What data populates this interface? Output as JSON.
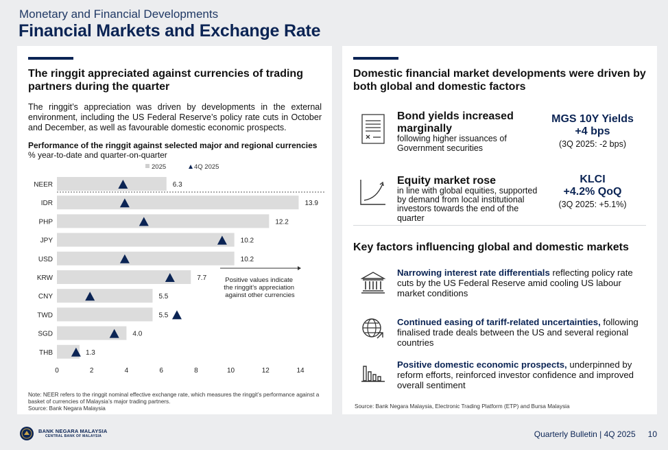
{
  "header": {
    "kicker": "Monetary and Financial Developments",
    "title": "Financial Markets and Exchange Rate"
  },
  "left": {
    "heading": "The ringgit appreciated against currencies of trading partners during the quarter",
    "intro": "The ringgit’s appreciation was driven by developments in the external environment, including the US Federal Reserve’s policy rate cuts in October and December, as well as favourable domestic economic prospects.",
    "note": "Note: NEER refers to the ringgit nominal effective exchange rate, which measures the ringgit’s performance against a basket of currencies of Malaysia’s major trading partners.",
    "source": "Source: Bank Negara Malaysia"
  },
  "chart_data": {
    "type": "bar",
    "orientation": "horizontal",
    "title": "Performance of the ringgit against selected major and regional currencies",
    "subtitle": "% year-to-date and quarter-on-quarter",
    "categories": [
      "NEER",
      "IDR",
      "PHP",
      "JPY",
      "USD",
      "KRW",
      "CNY",
      "TWD",
      "SGD",
      "THB"
    ],
    "series": [
      {
        "name": "2025",
        "kind": "bar",
        "values": [
          6.3,
          13.9,
          12.2,
          10.2,
          10.2,
          7.7,
          5.5,
          5.5,
          4.0,
          1.3
        ],
        "color": "#dcdcdc"
      },
      {
        "name": "4Q 2025",
        "kind": "marker",
        "values": [
          3.8,
          3.9,
          5.0,
          9.5,
          3.9,
          6.5,
          1.9,
          6.9,
          3.3,
          1.1
        ],
        "color": "#0b2454"
      }
    ],
    "data_labels": [
      "6.3",
      "13.9",
      "12.2",
      "10.2",
      "10.2",
      "7.7",
      "5.5",
      "5.5",
      "4.0",
      "1.3"
    ],
    "xlim": [
      0,
      14
    ],
    "xticks": [
      "0",
      "2",
      "4",
      "6",
      "8",
      "10",
      "12",
      "14"
    ],
    "annotation": [
      "Positive values indicate",
      "the ringgit’s appreciation",
      "against other currencies"
    ],
    "legend_position": "top-center"
  },
  "right": {
    "heading": "Domestic financial market developments were driven by both global and domestic factors",
    "bond": {
      "title": "Bond yields increased marginally",
      "desc": "following higher issuances of Government securities",
      "metric_title1": "MGS 10Y Yields",
      "metric_title2": "+4 bps",
      "metric_sub": "(3Q 2025: -2 bps)"
    },
    "equity": {
      "title": "Equity market rose",
      "desc": "in line with global equities, supported by demand from local institutional investors towards the end of the quarter",
      "metric_title1": "KLCI",
      "metric_title2": "+4.2% QoQ",
      "metric_sub": "(3Q 2025: +5.1%)"
    },
    "key_heading": "Key factors influencing global and domestic markets",
    "factors": [
      {
        "bold": "Narrowing interest rate differentials",
        "rest": " reflecting policy rate cuts by the US Federal Reserve amid cooling US labour market conditions"
      },
      {
        "bold": "Continued easing of tariff-related uncertainties,",
        "rest": " following finalised trade deals between the US and several regional countries"
      },
      {
        "bold": "Positive domestic economic prospects,",
        "rest": " underpinned by reform efforts, reinforced investor confidence and improved overall sentiment"
      }
    ],
    "source": "Source: Bank Negara Malaysia, Electronic Trading Platform (ETP) and Bursa Malaysia"
  },
  "footer": {
    "logo_line1": "BANK NEGARA MALAYSIA",
    "logo_line2": "CENTRAL BANK OF MALAYSIA",
    "publication": "Quarterly Bulletin | 4Q 2025",
    "page": "10"
  }
}
